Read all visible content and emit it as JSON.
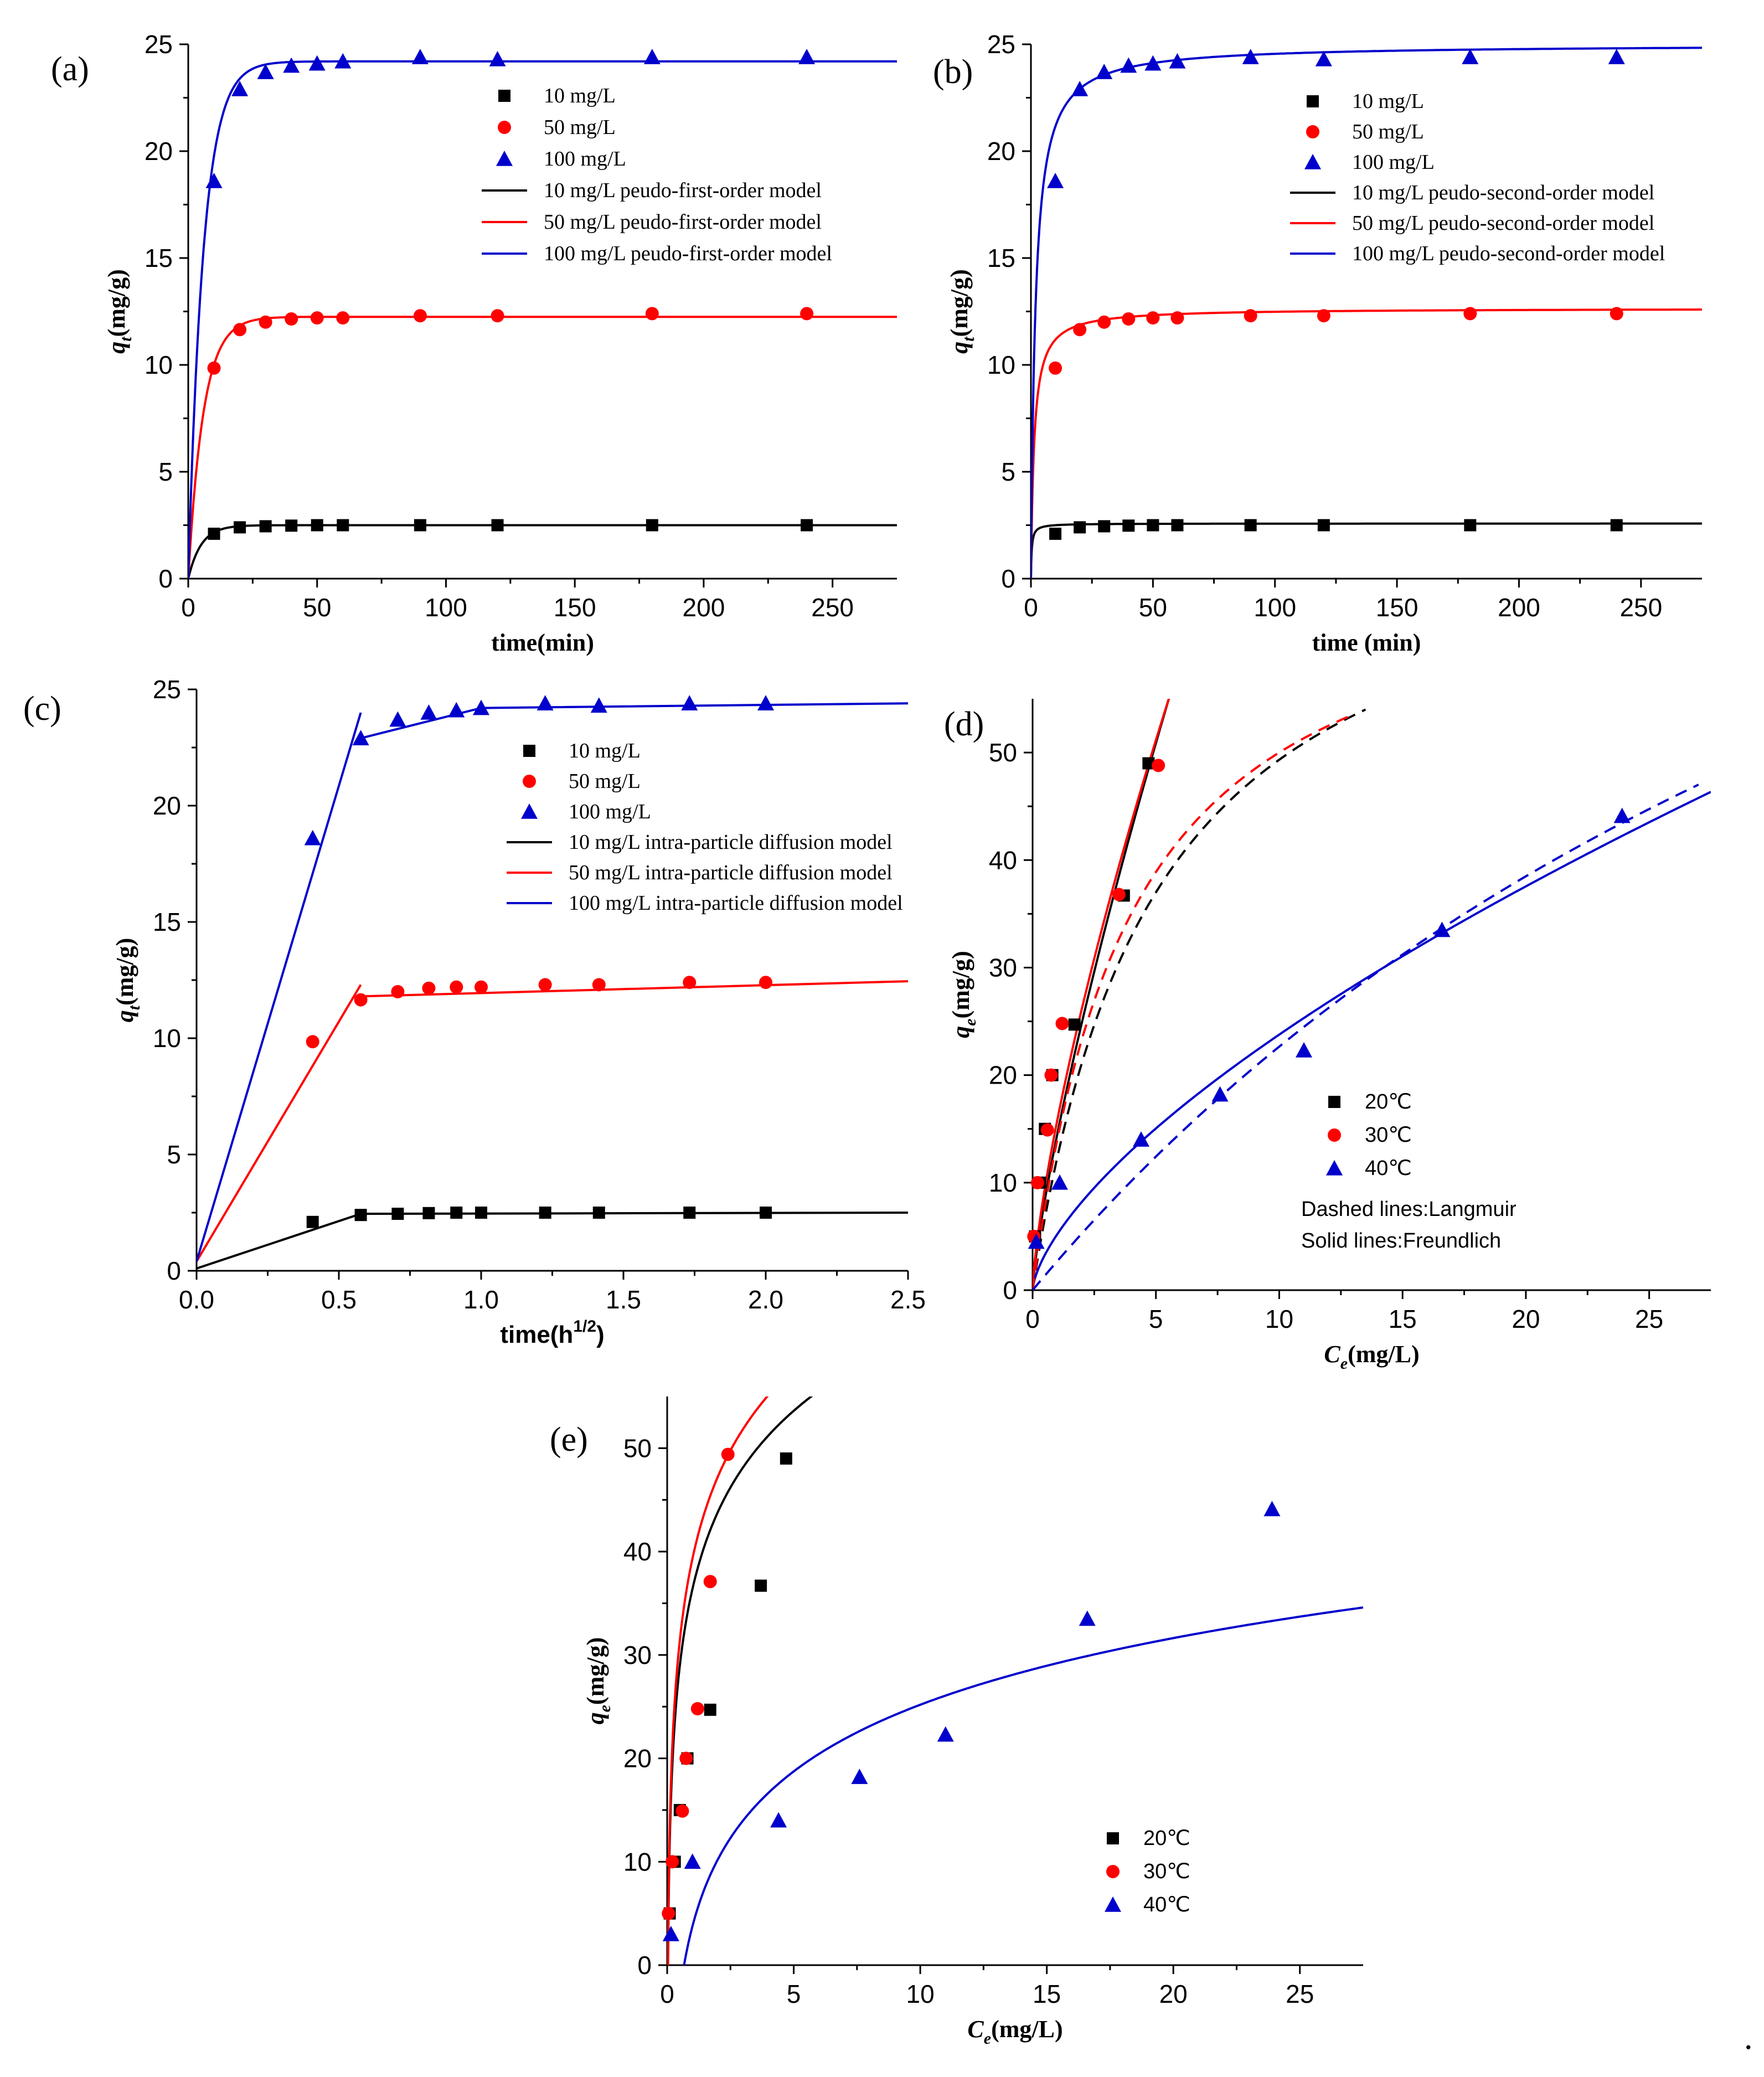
{
  "figure_trailing_mark": ".",
  "chart_data": [
    {
      "id": "a",
      "type": "scatter",
      "panel_label": "(a)",
      "xlabel": "time(min)",
      "ylabel": "q_t(mg/g)",
      "ylabel_main": "q",
      "ylabel_sub": "t",
      "ylabel_unit": "(mg/g)",
      "xlim": [
        0,
        275
      ],
      "ylim": [
        0,
        25
      ],
      "xticks": [
        0,
        50,
        100,
        150,
        200,
        250
      ],
      "yticks": [
        0,
        5,
        10,
        15,
        20,
        25
      ],
      "legend_font": "serif",
      "series": [
        {
          "name": "10 mg/L",
          "color": "#000000",
          "marker": "square",
          "x": [
            10,
            20,
            30,
            40,
            50,
            60,
            90,
            120,
            180,
            240
          ],
          "y": [
            2.1,
            2.4,
            2.45,
            2.48,
            2.5,
            2.5,
            2.5,
            2.5,
            2.5,
            2.5
          ]
        },
        {
          "name": "50 mg/L",
          "color": "#ff0000",
          "marker": "circle",
          "x": [
            10,
            20,
            30,
            40,
            50,
            60,
            90,
            120,
            180,
            240
          ],
          "y": [
            9.85,
            11.65,
            12.0,
            12.15,
            12.2,
            12.2,
            12.3,
            12.3,
            12.4,
            12.4
          ]
        },
        {
          "name": "100 mg/L",
          "color": "#0000cc",
          "marker": "triangle",
          "x": [
            10,
            20,
            30,
            40,
            50,
            60,
            90,
            120,
            180,
            240
          ],
          "y": [
            18.6,
            22.9,
            23.7,
            24.0,
            24.1,
            24.2,
            24.4,
            24.3,
            24.4,
            24.4
          ]
        }
      ],
      "models": [
        {
          "name": "10 mg/L peudo-first-order model",
          "color": "#000000",
          "kind": "pfo",
          "qe": 2.5,
          "k": 0.2
        },
        {
          "name": "50 mg/L peudo-first-order model",
          "color": "#ff0000",
          "kind": "pfo",
          "qe": 12.25,
          "k": 0.17
        },
        {
          "name": "100 mg/L peudo-first-order model",
          "color": "#0000cc",
          "kind": "pfo",
          "qe": 24.2,
          "k": 0.17
        }
      ]
    },
    {
      "id": "b",
      "type": "scatter",
      "panel_label": "(b)",
      "xlabel": "time (min)",
      "ylabel": "q_t(mg/g)",
      "ylabel_main": "q",
      "ylabel_sub": "t",
      "ylabel_unit": "(mg/g)",
      "xlim": [
        0,
        275
      ],
      "ylim": [
        0,
        25
      ],
      "xticks": [
        0,
        50,
        100,
        150,
        200,
        250
      ],
      "yticks": [
        0,
        5,
        10,
        15,
        20,
        25
      ],
      "legend_font": "serif",
      "series": [
        {
          "name": "10 mg/L",
          "color": "#000000",
          "marker": "square",
          "x": [
            10,
            20,
            30,
            40,
            50,
            60,
            90,
            120,
            180,
            240
          ],
          "y": [
            2.1,
            2.4,
            2.45,
            2.48,
            2.5,
            2.5,
            2.5,
            2.5,
            2.5,
            2.5
          ]
        },
        {
          "name": "50 mg/L",
          "color": "#ff0000",
          "marker": "circle",
          "x": [
            10,
            20,
            30,
            40,
            50,
            60,
            90,
            120,
            180,
            240
          ],
          "y": [
            9.85,
            11.65,
            12.0,
            12.15,
            12.2,
            12.2,
            12.3,
            12.3,
            12.4,
            12.4
          ]
        },
        {
          "name": "100 mg/L",
          "color": "#0000cc",
          "marker": "triangle",
          "x": [
            10,
            20,
            30,
            40,
            50,
            60,
            90,
            120,
            180,
            240
          ],
          "y": [
            18.6,
            22.9,
            23.7,
            24.0,
            24.1,
            24.2,
            24.4,
            24.3,
            24.4,
            24.4
          ]
        }
      ],
      "models": [
        {
          "name": "10 mg/L peudo-second-order model",
          "color": "#000000",
          "kind": "pso",
          "qe": 2.58,
          "k": 1.2
        },
        {
          "name": "50 mg/L peudo-second-order model",
          "color": "#ff0000",
          "kind": "pso",
          "qe": 12.65,
          "k": 0.06
        },
        {
          "name": "100 mg/L peudo-second-order model",
          "color": "#0000cc",
          "kind": "pso",
          "qe": 25.0,
          "k": 0.022
        }
      ]
    },
    {
      "id": "c",
      "type": "scatter",
      "panel_label": "(c)",
      "xlabel": "time(h^1/2)",
      "xlabel_main": "time(h",
      "xlabel_sup": "1/2",
      "xlabel_end": ")",
      "ylabel": "q_t(mg/g)",
      "ylabel_main": "q",
      "ylabel_sub": "t",
      "ylabel_unit": "(mg/g)",
      "xlim": [
        0,
        2.5
      ],
      "ylim": [
        0,
        25
      ],
      "xticks": [
        0.0,
        0.5,
        1.0,
        1.5,
        2.0,
        2.5
      ],
      "xtick_labels": [
        "0.0",
        "0.5",
        "1.0",
        "1.5",
        "2.0",
        "2.5"
      ],
      "yticks": [
        0,
        5,
        10,
        15,
        20,
        25
      ],
      "tick_font": "sans",
      "legend_font": "serif",
      "series": [
        {
          "name": "10 mg/L",
          "color": "#000000",
          "marker": "square",
          "x": [
            0.408,
            0.577,
            0.707,
            0.816,
            0.913,
            1.0,
            1.225,
            1.414,
            1.732,
            2.0
          ],
          "y": [
            2.1,
            2.4,
            2.45,
            2.48,
            2.5,
            2.5,
            2.5,
            2.5,
            2.5,
            2.5
          ]
        },
        {
          "name": "50 mg/L",
          "color": "#ff0000",
          "marker": "circle",
          "x": [
            0.408,
            0.577,
            0.707,
            0.816,
            0.913,
            1.0,
            1.225,
            1.414,
            1.732,
            2.0
          ],
          "y": [
            9.85,
            11.65,
            12.0,
            12.15,
            12.2,
            12.2,
            12.3,
            12.3,
            12.4,
            12.4
          ]
        },
        {
          "name": "100 mg/L",
          "color": "#0000cc",
          "marker": "triangle",
          "x": [
            0.408,
            0.577,
            0.707,
            0.816,
            0.913,
            1.0,
            1.225,
            1.414,
            1.732,
            2.0
          ],
          "y": [
            18.6,
            22.9,
            23.7,
            24.0,
            24.1,
            24.2,
            24.4,
            24.3,
            24.4,
            24.4
          ]
        }
      ],
      "models": [
        {
          "name": "10 mg/L intra-particle diffusion model",
          "color": "#000000",
          "kind": "poly",
          "points": [
            [
              0.0,
              0.1
            ],
            [
              0.577,
              2.45
            ],
            [
              2.5,
              2.5
            ]
          ]
        },
        {
          "name": "50 mg/L intra-particle diffusion model",
          "color": "#ff0000",
          "kind": "poly",
          "points": [
            [
              0.0,
              0.4
            ],
            [
              0.577,
              12.3
            ]
          ],
          "points2": [
            [
              0.577,
              11.8
            ],
            [
              2.5,
              12.45
            ]
          ]
        },
        {
          "name": "100 mg/L intra-particle diffusion model",
          "color": "#0000cc",
          "kind": "poly",
          "points": [
            [
              0.0,
              0.4
            ],
            [
              0.577,
              24.0
            ]
          ],
          "points2": [
            [
              0.577,
              22.9
            ],
            [
              1.0,
              24.2
            ],
            [
              2.5,
              24.4
            ]
          ]
        }
      ]
    },
    {
      "id": "d",
      "type": "scatter",
      "panel_label": "(d)",
      "xlabel": "C_e(mg/L)",
      "xlabel_main": "C",
      "xlabel_sub": "e",
      "xlabel_unit": "(mg/L)",
      "ylabel": "q_e(mg/g)",
      "ylabel_main": "q",
      "ylabel_sub": "e",
      "ylabel_unit": "(mg/g)",
      "xlim": [
        0,
        27.5
      ],
      "ylim": [
        0,
        55
      ],
      "xticks": [
        0,
        5,
        10,
        15,
        20,
        25
      ],
      "yticks": [
        0,
        10,
        20,
        30,
        40,
        50
      ],
      "tick_font": "sans",
      "legend_font": "sans",
      "notes": [
        "Dashed lines:Langmuir",
        "Solid  lines:Freundlich"
      ],
      "series": [
        {
          "name": "20℃",
          "color": "#000000",
          "marker": "square",
          "x": [
            0.1,
            0.3,
            0.5,
            0.8,
            1.7,
            3.7,
            4.7
          ],
          "y": [
            5,
            10,
            15,
            20,
            24.7,
            36.7,
            49
          ]
        },
        {
          "name": "30℃",
          "color": "#ff0000",
          "marker": "circle",
          "x": [
            0.05,
            0.2,
            0.6,
            0.75,
            1.2,
            3.5,
            5.1
          ],
          "y": [
            5,
            10,
            14.9,
            20,
            24.8,
            36.8,
            48.8
          ]
        },
        {
          "name": "40℃",
          "color": "#0000cc",
          "marker": "triangle",
          "x": [
            0.15,
            1.1,
            4.4,
            7.6,
            11.0,
            16.6,
            23.9
          ],
          "y": [
            4.5,
            10,
            14,
            18.2,
            22.3,
            33.5,
            44.1
          ]
        }
      ],
      "models": [
        {
          "name": "20℃ Freundlich",
          "color": "#000000",
          "kind": "freundlich",
          "dash": false,
          "K": 14.5,
          "n": 0.78,
          "xmax": 6.4
        },
        {
          "name": "30℃ Freundlich",
          "color": "#ff0000",
          "kind": "freundlich",
          "dash": false,
          "K": 15.8,
          "n": 0.73,
          "xmax": 6.6
        },
        {
          "name": "40℃ Freundlich",
          "color": "#0000cc",
          "kind": "freundlich",
          "dash": false,
          "K": 5.2,
          "n": 0.66,
          "xmax": 27.5
        },
        {
          "name": "20℃ Langmuir",
          "color": "#000000",
          "kind": "langmuir",
          "dash": true,
          "qm": 74,
          "KL": 0.2,
          "xmax": 13.5
        },
        {
          "name": "30℃ Langmuir",
          "color": "#ff0000",
          "kind": "langmuir",
          "dash": true,
          "qm": 70,
          "KL": 0.25,
          "xmax": 12.8
        },
        {
          "name": "40℃ Langmuir",
          "color": "#0000cc",
          "kind": "langmuir",
          "dash": true,
          "qm": 128,
          "KL": 0.0215,
          "xmax": 27.0
        }
      ]
    },
    {
      "id": "e",
      "type": "scatter",
      "panel_label": "(e)",
      "xlabel": "C_e(mg/L)",
      "xlabel_main": "C",
      "xlabel_sub": "e",
      "xlabel_unit": "(mg/L)",
      "ylabel": "q_e(mg/g)",
      "ylabel_main": "q",
      "ylabel_sub": "e",
      "ylabel_unit": "(mg/g)",
      "xlim": [
        0,
        27.5
      ],
      "ylim": [
        0,
        55
      ],
      "xticks": [
        0,
        5,
        10,
        15,
        20,
        25
      ],
      "yticks": [
        0,
        10,
        20,
        30,
        40,
        50
      ],
      "tick_font": "sans",
      "legend_font": "sans",
      "series": [
        {
          "name": "20℃",
          "color": "#000000",
          "marker": "square",
          "x": [
            0.1,
            0.3,
            0.5,
            0.8,
            1.7,
            3.7,
            4.7
          ],
          "y": [
            5,
            10,
            15,
            20,
            24.7,
            36.7,
            49
          ]
        },
        {
          "name": "30℃",
          "color": "#ff0000",
          "marker": "circle",
          "x": [
            0.05,
            0.2,
            0.6,
            0.75,
            1.2,
            1.7,
            2.4
          ],
          "y": [
            5,
            10,
            14.9,
            20,
            24.8,
            37.1,
            49.4
          ]
        },
        {
          "name": "40℃",
          "color": "#0000cc",
          "marker": "triangle",
          "x": [
            0.15,
            1.0,
            4.4,
            7.6,
            11.0,
            16.6,
            23.9
          ],
          "y": [
            3,
            10,
            14,
            18.2,
            22.3,
            33.5,
            44.1
          ]
        }
      ],
      "models": [
        {
          "name": "20℃ model",
          "color": "#000000",
          "kind": "temkin",
          "A": 30.0,
          "B": 10.7,
          "xmax": 18.3
        },
        {
          "name": "30℃ model",
          "color": "#ff0000",
          "kind": "temkin",
          "A": 31.5,
          "B": 11.4,
          "xmax": 15.4
        },
        {
          "name": "40℃ model",
          "color": "#0000cc",
          "kind": "temkin",
          "A": 1.5,
          "B": 9.3,
          "xmax": 27.5
        }
      ]
    }
  ]
}
